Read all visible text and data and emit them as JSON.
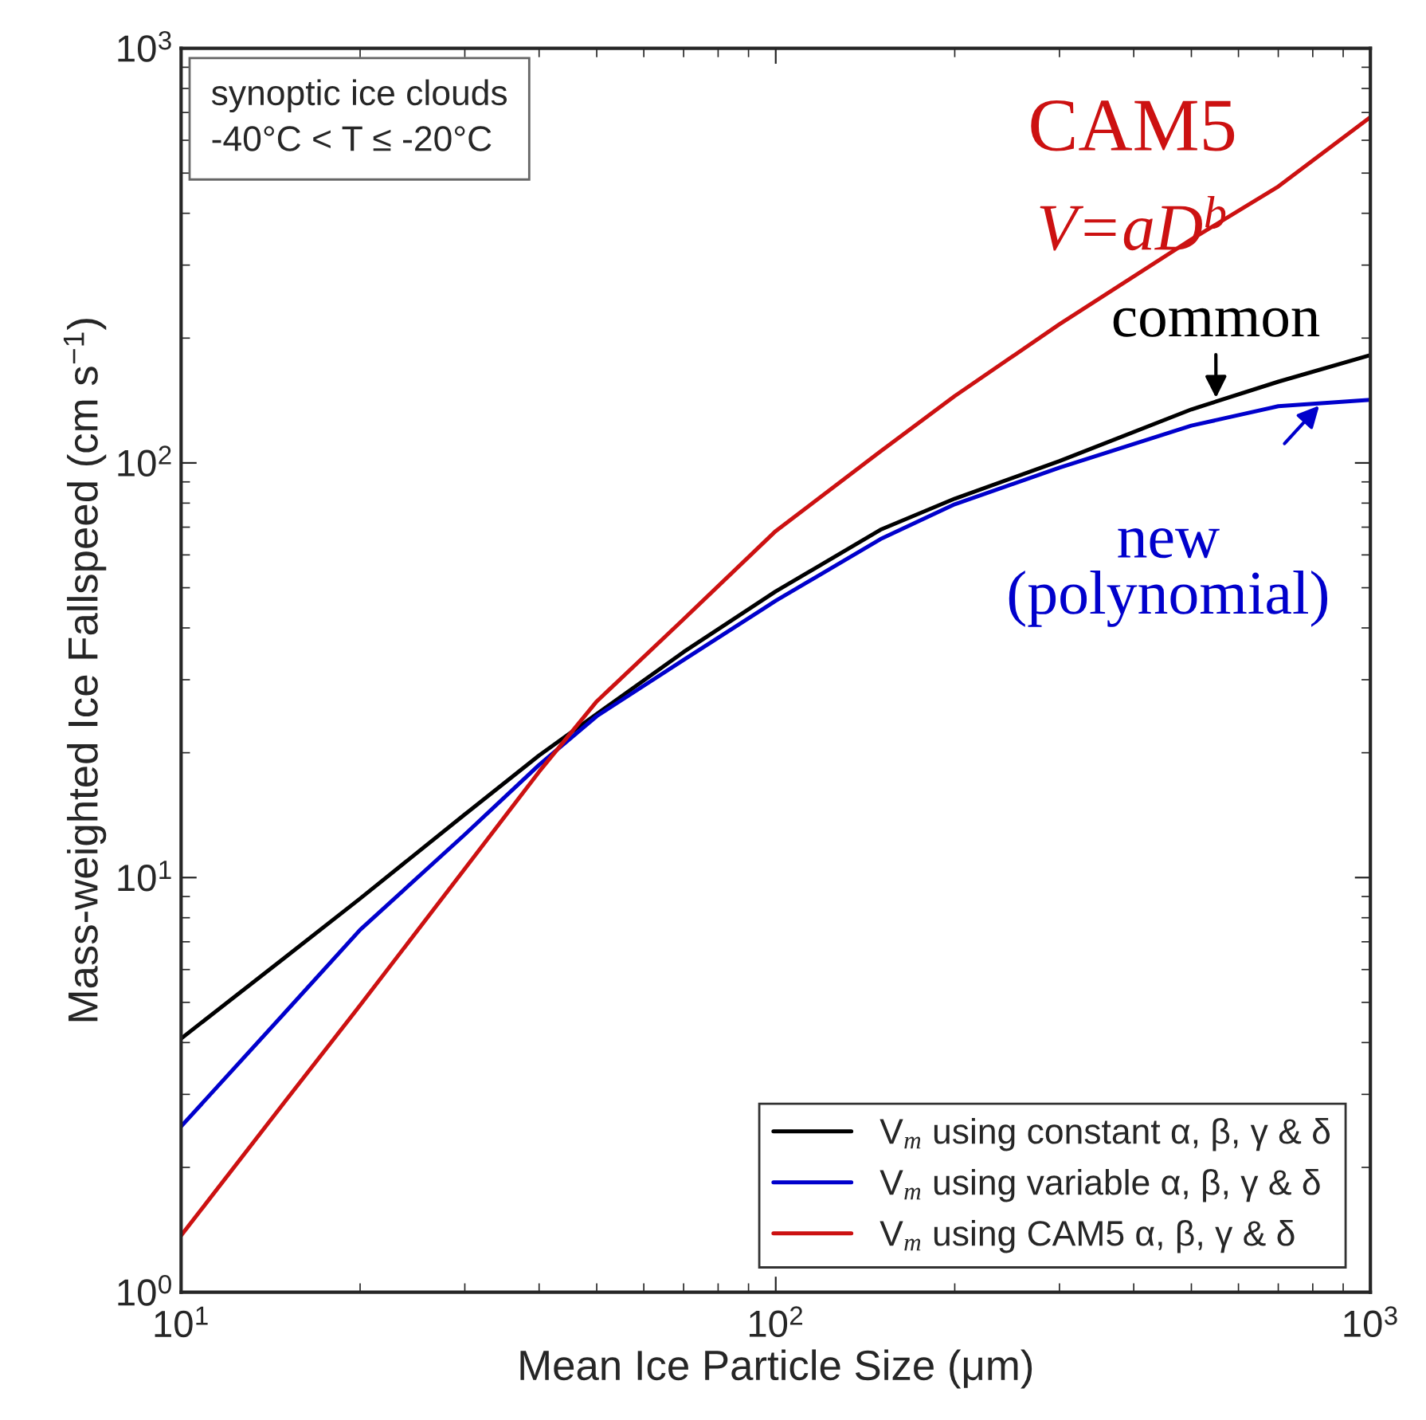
{
  "chart_data": {
    "type": "line",
    "xlabel": "Mean Ice Particle Size (μm)",
    "ylabel": "Mass-weighted Ice Fallspeed (cm s$^{−1}$)",
    "x": [
      10,
      15,
      20,
      30,
      40,
      50,
      70,
      100,
      150,
      200,
      300,
      500,
      700,
      1000
    ],
    "series": [
      {
        "name": "V$_{m}$ using constant α, β, γ & δ",
        "color": "#000000",
        "values": [
          4.09,
          6.44,
          8.9,
          14.2,
          19.7,
          24.8,
          35.0,
          49.0,
          69.0,
          82.0,
          101,
          134.6,
          157,
          182
        ]
      },
      {
        "name": "V$_{m}$ using variable α, β, γ & δ",
        "color": "#0000cc",
        "values": [
          2.51,
          4.75,
          7.48,
          12.7,
          18.7,
          24.5,
          33.5,
          46.5,
          65.5,
          79.5,
          97.4,
          123,
          137,
          142
        ]
      },
      {
        "name": "V$_{m}$ using CAM5 α, β, γ & δ",
        "color": "#cc1111",
        "values": [
          1.37,
          2.9,
          4.92,
          10.5,
          18.0,
          26.6,
          42.0,
          68.5,
          106.6,
          145,
          216,
          346,
          464,
          682
        ]
      }
    ],
    "log": "xy",
    "xlim": [
      10,
      1000
    ],
    "ylim": [
      1,
      1000
    ],
    "xticks": [
      {
        "value": 10,
        "label": "10$^{1}$"
      },
      {
        "value": 100,
        "label": "10$^{2}$"
      },
      {
        "value": 1000,
        "label": "10$^{3}$"
      }
    ],
    "yticks": [
      {
        "value": 1,
        "label": "10$^{0}$"
      },
      {
        "value": 10,
        "label": "10$^{1}$"
      },
      {
        "value": 100,
        "label": "10$^{2}$"
      },
      {
        "value": 1000,
        "label": "10$^{3}$"
      }
    ],
    "grid": false,
    "legend": "bottom right",
    "marker": "none",
    "line_style": "solid",
    "annotations": [
      "synoptic ice clouds\n-40°C < T ≤ -20°C",
      "CAM5",
      "V=aD$^{b}$",
      {
        "text": "common",
        "x": 550,
        "y": 140
      },
      {
        "text": "new\n(polynomial)",
        "x": 830,
        "y": 140
      }
    ]
  }
}
